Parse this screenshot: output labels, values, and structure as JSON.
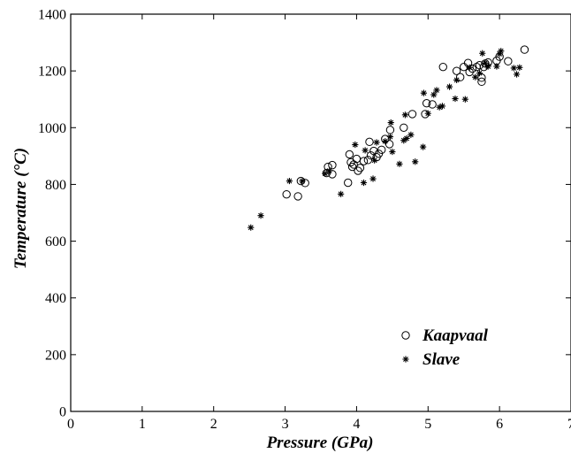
{
  "chart_data": {
    "type": "scatter",
    "xlabel": "Pressure (GPa)",
    "ylabel": "Temperature (°C)",
    "xlim": [
      0,
      7
    ],
    "ylim": [
      0,
      1400
    ],
    "x_ticks": [
      "0",
      "1",
      "2",
      "3",
      "4",
      "5",
      "6",
      "7"
    ],
    "y_ticks": [
      "0",
      "200",
      "400",
      "600",
      "800",
      "1000",
      "1200",
      "1400"
    ],
    "grid": false,
    "legend_position": "lower-right",
    "series": [
      {
        "name": "Kaapvaal",
        "marker": "open-circle",
        "points": [
          [
            3.02,
            765
          ],
          [
            3.18,
            758
          ],
          [
            3.22,
            812
          ],
          [
            3.28,
            805
          ],
          [
            3.58,
            840
          ],
          [
            3.6,
            862
          ],
          [
            3.66,
            868
          ],
          [
            3.66,
            836
          ],
          [
            3.88,
            806
          ],
          [
            3.9,
            906
          ],
          [
            3.92,
            878
          ],
          [
            3.94,
            862
          ],
          [
            3.96,
            870
          ],
          [
            4.0,
            890
          ],
          [
            4.02,
            848
          ],
          [
            4.05,
            858
          ],
          [
            4.1,
            882
          ],
          [
            4.16,
            886
          ],
          [
            4.18,
            950
          ],
          [
            4.2,
            902
          ],
          [
            4.24,
            918
          ],
          [
            4.28,
            896
          ],
          [
            4.31,
            908
          ],
          [
            4.35,
            922
          ],
          [
            4.4,
            960
          ],
          [
            4.46,
            942
          ],
          [
            4.47,
            992
          ],
          [
            4.66,
            1000
          ],
          [
            4.78,
            1048
          ],
          [
            4.96,
            1048
          ],
          [
            4.98,
            1086
          ],
          [
            5.06,
            1082
          ],
          [
            5.21,
            1214
          ],
          [
            5.4,
            1200
          ],
          [
            5.45,
            1178
          ],
          [
            5.5,
            1214
          ],
          [
            5.56,
            1228
          ],
          [
            5.58,
            1196
          ],
          [
            5.62,
            1208
          ],
          [
            5.68,
            1214
          ],
          [
            5.72,
            1220
          ],
          [
            5.75,
            1176
          ],
          [
            5.75,
            1162
          ],
          [
            5.78,
            1214
          ],
          [
            5.8,
            1226
          ],
          [
            5.84,
            1230
          ],
          [
            5.96,
            1236
          ],
          [
            6.0,
            1250
          ],
          [
            6.12,
            1234
          ],
          [
            6.35,
            1275
          ]
        ]
      },
      {
        "name": "Slave",
        "marker": "asterisk",
        "points": [
          [
            2.52,
            648
          ],
          [
            2.66,
            690
          ],
          [
            3.06,
            812
          ],
          [
            3.24,
            812
          ],
          [
            3.56,
            838
          ],
          [
            3.62,
            848
          ],
          [
            3.78,
            766
          ],
          [
            3.98,
            940
          ],
          [
            4.1,
            806
          ],
          [
            4.12,
            920
          ],
          [
            4.23,
            820
          ],
          [
            4.25,
            885
          ],
          [
            4.28,
            948
          ],
          [
            4.4,
            952
          ],
          [
            4.47,
            968
          ],
          [
            4.48,
            1018
          ],
          [
            4.5,
            915
          ],
          [
            4.6,
            872
          ],
          [
            4.66,
            955
          ],
          [
            4.68,
            1045
          ],
          [
            4.7,
            962
          ],
          [
            4.76,
            975
          ],
          [
            4.82,
            880
          ],
          [
            4.93,
            932
          ],
          [
            4.94,
            1122
          ],
          [
            5.0,
            1050
          ],
          [
            5.08,
            1116
          ],
          [
            5.12,
            1132
          ],
          [
            5.16,
            1072
          ],
          [
            5.2,
            1076
          ],
          [
            5.3,
            1144
          ],
          [
            5.38,
            1102
          ],
          [
            5.4,
            1168
          ],
          [
            5.52,
            1100
          ],
          [
            5.58,
            1212
          ],
          [
            5.66,
            1178
          ],
          [
            5.72,
            1192
          ],
          [
            5.76,
            1262
          ],
          [
            5.8,
            1228
          ],
          [
            5.84,
            1216
          ],
          [
            5.96,
            1216
          ],
          [
            6.0,
            1260
          ],
          [
            6.02,
            1270
          ],
          [
            6.2,
            1210
          ],
          [
            6.24,
            1188
          ],
          [
            6.28,
            1212
          ]
        ]
      }
    ]
  }
}
